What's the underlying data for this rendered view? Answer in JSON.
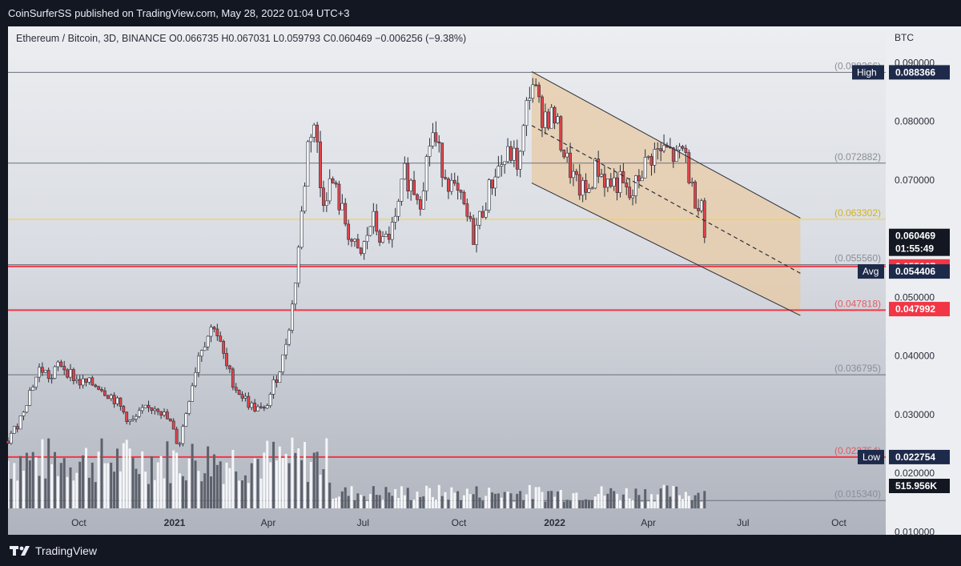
{
  "header": {
    "published_text": "CoinSurferSS published on TradingView.com, May 28, 2022 01:04 UTC+3"
  },
  "legend_text": "Ethereum / Bitcoin, 3D, BINANCE  O0.066735  H0.067031  L0.059793  C0.060469  −0.006256 (−9.38%)",
  "footer": {
    "brand": "TradingView",
    "logo_icon": "tradingview-logo-icon"
  },
  "colors": {
    "up": "#ffffff",
    "down": "#e0444a",
    "wick": "#2a2e39",
    "red_line": "#f23645",
    "yellow_line": "#f5d23c",
    "gray_line": "#6b6f78",
    "channel_fill": "#e8c9a1",
    "label_dark": "#131722",
    "label_red": "#f23645",
    "label_navy": "#1e2a4a"
  },
  "chart_data": {
    "type": "candlestick",
    "symbol": "Ethereum / Bitcoin",
    "interval": "3D",
    "exchange": "BINANCE",
    "ohlc_last": {
      "open": 0.066735,
      "high": 0.067031,
      "low": 0.059793,
      "close": 0.060469,
      "change": -0.006256,
      "change_pct": -9.38
    },
    "y_axis": {
      "unit": "BTC",
      "ylim": [
        0.0095,
        0.0962
      ],
      "ticks": [
        "0.010000",
        "0.020000",
        "0.030000",
        "0.040000",
        "0.050000",
        "0.060000",
        "0.070000",
        "0.080000",
        "0.090000"
      ]
    },
    "x_axis": {
      "ticks": [
        "Oct",
        "2021",
        "Apr",
        "Jul",
        "Oct",
        "2022",
        "Apr",
        "Jul",
        "Oct"
      ],
      "tick_dates": [
        "2020-10-01",
        "2021-01-01",
        "2021-04-01",
        "2021-07-01",
        "2021-10-01",
        "2022-01-01",
        "2022-04-01",
        "2022-07-01",
        "2022-10-01"
      ],
      "range": [
        "2020-07-25",
        "2022-11-15"
      ]
    },
    "price_path": [
      [
        "2020-07-25",
        0.0255
      ],
      [
        "2020-08-05",
        0.029
      ],
      [
        "2020-08-15",
        0.034
      ],
      [
        "2020-08-25",
        0.038
      ],
      [
        "2020-09-05",
        0.036
      ],
      [
        "2020-09-12",
        0.039
      ],
      [
        "2020-09-20",
        0.0375
      ],
      [
        "2020-10-01",
        0.0355
      ],
      [
        "2020-10-20",
        0.035
      ],
      [
        "2020-11-05",
        0.0325
      ],
      [
        "2020-11-20",
        0.0285
      ],
      [
        "2020-12-01",
        0.0305
      ],
      [
        "2020-12-15",
        0.0315
      ],
      [
        "2020-12-28",
        0.0285
      ],
      [
        "2021-01-05",
        0.0245
      ],
      [
        "2021-01-15",
        0.033
      ],
      [
        "2021-01-25",
        0.041
      ],
      [
        "2021-02-08",
        0.0455
      ],
      [
        "2021-02-20",
        0.038
      ],
      [
        "2021-03-01",
        0.0345
      ],
      [
        "2021-03-15",
        0.0315
      ],
      [
        "2021-03-28",
        0.0305
      ],
      [
        "2021-04-08",
        0.036
      ],
      [
        "2021-04-15",
        0.0395
      ],
      [
        "2021-04-25",
        0.0495
      ],
      [
        "2021-05-03",
        0.064
      ],
      [
        "2021-05-10",
        0.078
      ],
      [
        "2021-05-16",
        0.08
      ],
      [
        "2021-05-22",
        0.0665
      ],
      [
        "2021-06-01",
        0.07
      ],
      [
        "2021-06-10",
        0.065
      ],
      [
        "2021-06-20",
        0.0595
      ],
      [
        "2021-06-28",
        0.0565
      ],
      [
        "2021-07-10",
        0.0635
      ],
      [
        "2021-07-20",
        0.059
      ],
      [
        "2021-08-01",
        0.0625
      ],
      [
        "2021-08-10",
        0.071
      ],
      [
        "2021-08-25",
        0.067
      ],
      [
        "2021-09-05",
        0.0785
      ],
      [
        "2021-09-15",
        0.0725
      ],
      [
        "2021-09-25",
        0.0685
      ],
      [
        "2021-10-05",
        0.0655
      ],
      [
        "2021-10-15",
        0.0605
      ],
      [
        "2021-10-25",
        0.0655
      ],
      [
        "2021-11-05",
        0.0715
      ],
      [
        "2021-11-20",
        0.0745
      ],
      [
        "2021-11-28",
        0.0725
      ],
      [
        "2021-12-06",
        0.0835
      ],
      [
        "2021-12-10",
        0.0875
      ],
      [
        "2021-12-18",
        0.0815
      ],
      [
        "2022-01-01",
        0.0805
      ],
      [
        "2022-01-12",
        0.0735
      ],
      [
        "2022-01-22",
        0.069
      ],
      [
        "2022-02-01",
        0.0675
      ],
      [
        "2022-02-10",
        0.0725
      ],
      [
        "2022-02-20",
        0.0695
      ],
      [
        "2022-03-05",
        0.0695
      ],
      [
        "2022-03-15",
        0.0665
      ],
      [
        "2022-03-25",
        0.0715
      ],
      [
        "2022-04-05",
        0.0745
      ],
      [
        "2022-04-20",
        0.075
      ],
      [
        "2022-04-28",
        0.0735
      ],
      [
        "2022-05-06",
        0.0755
      ],
      [
        "2022-05-12",
        0.0685
      ],
      [
        "2022-05-18",
        0.0665
      ],
      [
        "2022-05-22",
        0.067
      ],
      [
        "2022-05-25",
        0.0605
      ]
    ],
    "volume_label": "515.956K",
    "horizontal_lines": [
      {
        "value": 0.088366,
        "label": "(0.088366)",
        "color": "gray"
      },
      {
        "value": 0.072882,
        "label": "(0.072882)",
        "color": "gray"
      },
      {
        "value": 0.063302,
        "label": "(0.063302)",
        "color": "yellow"
      },
      {
        "value": 0.05556,
        "label": "(0.055560)",
        "color": "gray"
      },
      {
        "value": 0.055267,
        "label": "",
        "color": "red"
      },
      {
        "value": 0.047818,
        "label": "(0.047818)",
        "color": "red"
      },
      {
        "value": 0.036795,
        "label": "(0.036795)",
        "color": "gray"
      },
      {
        "value": 0.022754,
        "label": "(0.022754)",
        "color": "red"
      },
      {
        "value": 0.01534,
        "label": "(0.015340)",
        "color": "gray"
      }
    ],
    "price_labels": [
      {
        "text": "0.088366",
        "tag": "High",
        "value": 0.088366,
        "style": "navy"
      },
      {
        "text": "0.060469",
        "value": 0.060469,
        "style": "dark"
      },
      {
        "text": "01:55:49",
        "value": 0.0585,
        "style": "dark"
      },
      {
        "text": "0.055267",
        "value": 0.055267,
        "style": "red"
      },
      {
        "text": "0.054406",
        "tag": "Avg",
        "value": 0.054406,
        "style": "navy"
      },
      {
        "text": "0.047992",
        "value": 0.047992,
        "style": "red"
      },
      {
        "text": "0.022754",
        "tag": "Low",
        "value": 0.022754,
        "style": "navy"
      }
    ],
    "channel": {
      "start_date": "2021-12-10",
      "end_date": "2022-08-25",
      "upper": [
        0.0885,
        0.0635
      ],
      "middle": [
        0.0793,
        0.0541
      ],
      "lower": [
        0.0695,
        0.0469
      ]
    }
  }
}
